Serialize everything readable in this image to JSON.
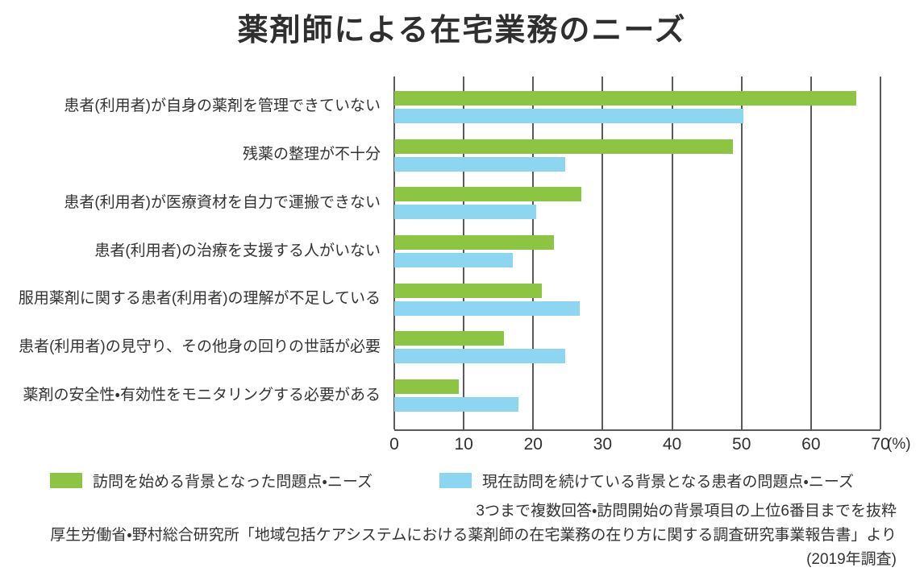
{
  "title": "薬剤師による在宅業務のニーズ",
  "colors": {
    "series_green": "#8cc542",
    "series_blue": "#8dd6f2",
    "grid": "#5a5a5a",
    "text": "#333333"
  },
  "chart_data": {
    "type": "bar",
    "orientation": "horizontal",
    "title": "薬剤師による在宅業務のニーズ",
    "categories": [
      "患者(利用者)が自身の薬剤を管理できていない",
      "残薬の整理が不十分",
      "患者(利用者)が医療資材を自力で運搬できない",
      "患者(利用者)の治療を支援する人がいない",
      "服用薬剤に関する患者(利用者)の理解が不足している",
      "患者(利用者)の見守り、その他身の回りの世話が必要",
      "薬剤の安全性・有効性をモニタリングする必要がある"
    ],
    "series": [
      {
        "name": "訪問を始める背景となった問題点・ニーズ",
        "color": "#8cc542",
        "values": [
          66.5,
          48.8,
          26.9,
          23.0,
          21.3,
          15.8,
          9.3
        ]
      },
      {
        "name": "現在訪問を続けている背景となる患者の問題点・ニーズ",
        "color": "#8dd6f2",
        "values": [
          50.3,
          24.6,
          20.4,
          17.1,
          26.7,
          24.6,
          17.9
        ]
      }
    ],
    "xlabel": "(%)",
    "xlim": [
      0,
      70
    ],
    "xticks": [
      0,
      10,
      20,
      30,
      40,
      50,
      60,
      70
    ],
    "grid": true,
    "legend_position": "bottom"
  },
  "axis": {
    "unit_label": "(%)"
  },
  "footer": {
    "note1": "3つまで複数回答・訪問開始の背景項目の上位6番目までを抜粋",
    "note2": "厚生労働省・野村総合研究所「地域包括ケアシステムにおける薬剤師の在宅業務の在り方に関する調査研究事業報告書」より",
    "note3": "(2019年調査)"
  }
}
